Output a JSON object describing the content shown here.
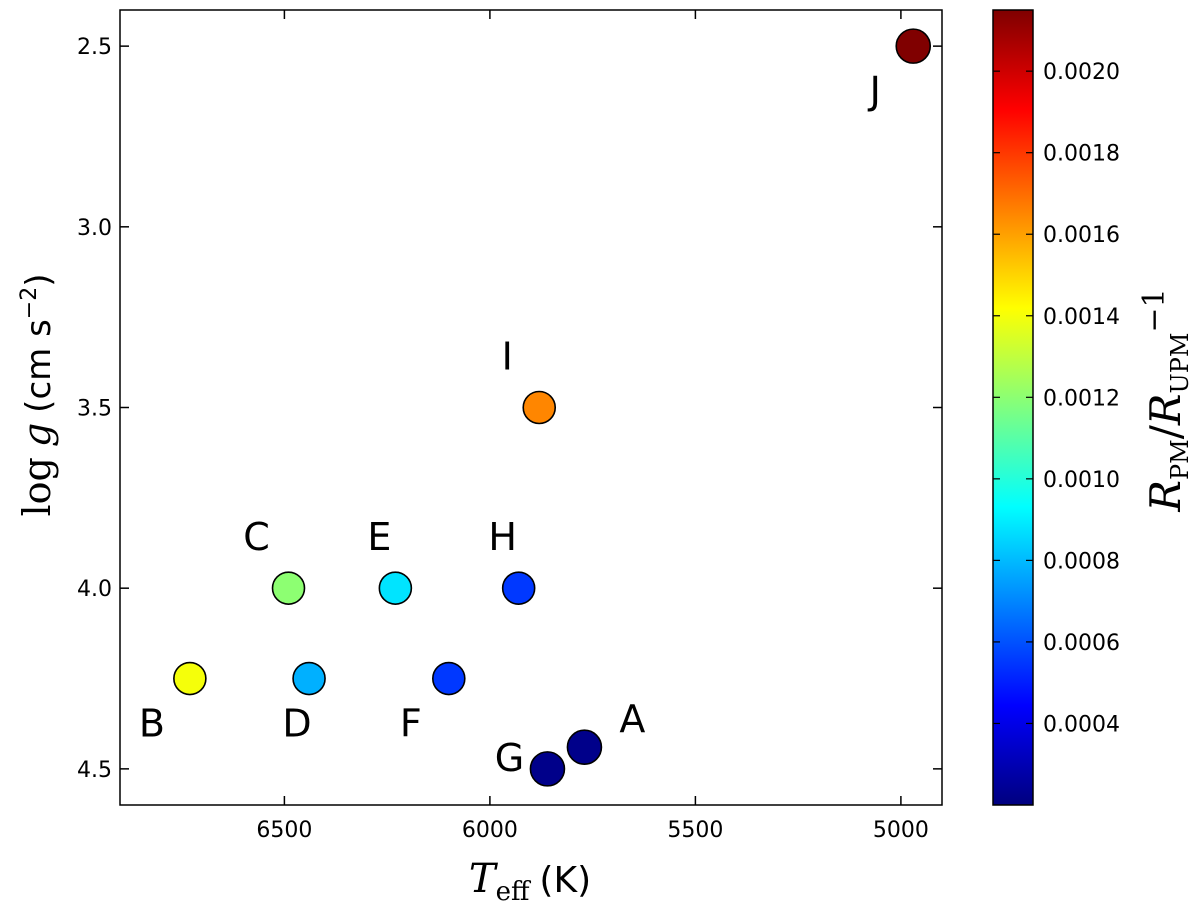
{
  "chart_data": {
    "type": "scatter",
    "title": "",
    "xlabel": {
      "symbol": "T",
      "subscript": "eff",
      "unit": "(K)"
    },
    "ylabel": {
      "prefix": "log",
      "symbol": "g",
      "unit_open": "(cm s",
      "exponent": "−2",
      "unit_close": ")"
    },
    "colorbar_label": {
      "numerator": "R",
      "numerator_sub": "PM",
      "slash": "/",
      "denominator": "R",
      "denominator_sub": "UPM",
      "exponent": "−1"
    },
    "xlim": [
      6900,
      4900
    ],
    "x_inverted": true,
    "ylim": [
      4.6,
      2.4
    ],
    "y_inverted": true,
    "x_ticks": [
      6500,
      6000,
      5500,
      5000
    ],
    "x_tick_labels": [
      "6500",
      "6000",
      "5500",
      "5000"
    ],
    "y_ticks": [
      2.5,
      3.0,
      3.5,
      4.0,
      4.5
    ],
    "y_tick_labels": [
      "2.5",
      "3.0",
      "3.5",
      "4.0",
      "4.5"
    ],
    "colorbar_range": [
      0.0002,
      0.00215
    ],
    "colorbar_ticks": [
      0.0004,
      0.0006,
      0.0008,
      0.001,
      0.0012,
      0.0014,
      0.0016,
      0.0018,
      0.002
    ],
    "colorbar_tick_labels": [
      "0.0004",
      "0.0006",
      "0.0008",
      "0.0010",
      "0.0012",
      "0.0014",
      "0.0016",
      "0.0018",
      "0.0020"
    ],
    "colormap": "jet",
    "grid": false,
    "points": [
      {
        "label": "A",
        "teff": 5770,
        "logg": 4.44,
        "value": 0.00022,
        "label_pos": "right"
      },
      {
        "label": "B",
        "teff": 6730,
        "logg": 4.25,
        "value": 0.0014,
        "label_pos": "below-left"
      },
      {
        "label": "C",
        "teff": 6490,
        "logg": 4.0,
        "value": 0.0012,
        "label_pos": "above-left"
      },
      {
        "label": "D",
        "teff": 6440,
        "logg": 4.25,
        "value": 0.00078,
        "label_pos": "below"
      },
      {
        "label": "E",
        "teff": 6230,
        "logg": 4.0,
        "value": 0.00088,
        "label_pos": "above"
      },
      {
        "label": "F",
        "teff": 6100,
        "logg": 4.25,
        "value": 0.00055,
        "label_pos": "below-left"
      },
      {
        "label": "G",
        "teff": 5860,
        "logg": 4.5,
        "value": 0.00022,
        "label_pos": "left"
      },
      {
        "label": "H",
        "teff": 5930,
        "logg": 4.0,
        "value": 0.00055,
        "label_pos": "above"
      },
      {
        "label": "I",
        "teff": 5880,
        "logg": 3.5,
        "value": 0.00165,
        "label_pos": "above-left"
      },
      {
        "label": "J",
        "teff": 4970,
        "logg": 2.5,
        "value": 0.00215,
        "label_pos": "below-left"
      }
    ]
  }
}
